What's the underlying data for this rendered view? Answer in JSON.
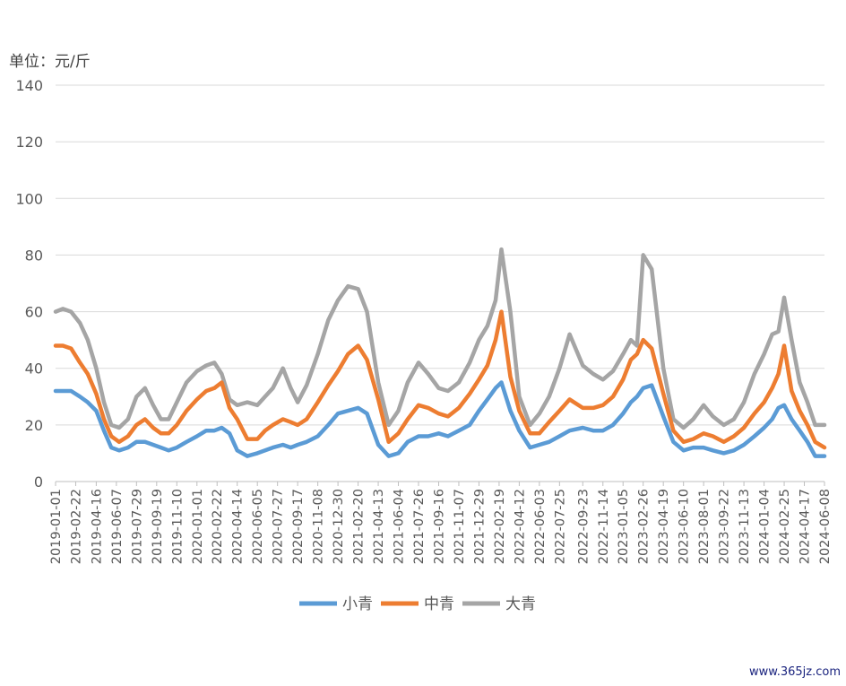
{
  "chart_data": {
    "type": "line",
    "unit_label": "单位：元/斤",
    "ylim": [
      0,
      140
    ],
    "y_ticks": [
      0,
      20,
      40,
      60,
      80,
      100,
      120,
      140
    ],
    "x_tick_labels": [
      "2019-01-01",
      "2019-02-22",
      "2019-04-16",
      "2019-06-07",
      "2019-07-29",
      "2019-09-19",
      "2019-11-10",
      "2020-01-01",
      "2020-02-22",
      "2020-04-14",
      "2020-06-05",
      "2020-07-27",
      "2020-09-17",
      "2020-11-08",
      "2020-12-30",
      "2021-02-20",
      "2021-04-13",
      "2021-06-04",
      "2021-07-26",
      "2021-09-16",
      "2021-11-07",
      "2021-12-29",
      "2022-02-19",
      "2022-04-12",
      "2022-06-03",
      "2022-07-25",
      "2022-09-23",
      "2022-11-14",
      "2023-01-05",
      "2023-02-26",
      "2023-04-19",
      "2023-06-10",
      "2023-08-01",
      "2023-09-22",
      "2023-11-13",
      "2024-01-04",
      "2024-02-25",
      "2024-04-17",
      "2024-06-08"
    ],
    "x": [
      "2019-01-01",
      "2019-01-20",
      "2019-02-10",
      "2019-03-05",
      "2019-03-25",
      "2019-04-16",
      "2019-05-06",
      "2019-05-25",
      "2019-06-14",
      "2019-07-07",
      "2019-07-29",
      "2019-08-20",
      "2019-09-10",
      "2019-09-30",
      "2019-10-20",
      "2019-11-10",
      "2019-12-05",
      "2020-01-01",
      "2020-01-25",
      "2020-02-15",
      "2020-03-05",
      "2020-03-25",
      "2020-04-14",
      "2020-05-10",
      "2020-06-05",
      "2020-06-25",
      "2020-07-15",
      "2020-08-10",
      "2020-08-30",
      "2020-09-17",
      "2020-10-10",
      "2020-11-08",
      "2020-12-05",
      "2020-12-30",
      "2021-01-25",
      "2021-02-20",
      "2021-03-15",
      "2021-04-13",
      "2021-05-10",
      "2021-06-04",
      "2021-06-28",
      "2021-07-26",
      "2021-08-20",
      "2021-09-16",
      "2021-10-10",
      "2021-11-07",
      "2021-12-05",
      "2021-12-29",
      "2022-01-20",
      "2022-02-10",
      "2022-02-25",
      "2022-03-20",
      "2022-04-12",
      "2022-05-10",
      "2022-06-03",
      "2022-06-28",
      "2022-07-25",
      "2022-08-20",
      "2022-09-23",
      "2022-10-20",
      "2022-11-14",
      "2022-12-10",
      "2023-01-05",
      "2023-01-25",
      "2023-02-10",
      "2023-02-26",
      "2023-03-20",
      "2023-04-19",
      "2023-05-15",
      "2023-06-10",
      "2023-07-05",
      "2023-08-01",
      "2023-08-25",
      "2023-09-22",
      "2023-10-18",
      "2023-11-13",
      "2023-12-10",
      "2024-01-04",
      "2024-01-25",
      "2024-02-10",
      "2024-02-25",
      "2024-03-15",
      "2024-04-05",
      "2024-04-25",
      "2024-05-15",
      "2024-06-08"
    ],
    "series": [
      {
        "name": "小青",
        "color": "#5b9bd5",
        "values": [
          32,
          32,
          32,
          30,
          28,
          25,
          18,
          12,
          11,
          12,
          14,
          14,
          13,
          12,
          11,
          12,
          14,
          16,
          18,
          18,
          19,
          17,
          11,
          9,
          10,
          11,
          12,
          13,
          12,
          13,
          14,
          16,
          20,
          24,
          25,
          26,
          24,
          13,
          9,
          10,
          14,
          16,
          16,
          17,
          16,
          18,
          20,
          25,
          29,
          33,
          35,
          25,
          18,
          12,
          13,
          14,
          16,
          18,
          19,
          18,
          18,
          20,
          24,
          28,
          30,
          33,
          34,
          23,
          14,
          11,
          12,
          12,
          11,
          10,
          11,
          13,
          16,
          19,
          22,
          26,
          27,
          22,
          18,
          14,
          9,
          9
        ]
      },
      {
        "name": "中青",
        "color": "#ed7d31",
        "values": [
          48,
          48,
          47,
          42,
          38,
          31,
          22,
          16,
          14,
          16,
          20,
          22,
          19,
          17,
          17,
          20,
          25,
          29,
          32,
          33,
          35,
          26,
          22,
          15,
          15,
          18,
          20,
          22,
          21,
          20,
          22,
          28,
          34,
          39,
          45,
          48,
          43,
          29,
          14,
          17,
          22,
          27,
          26,
          24,
          23,
          26,
          31,
          36,
          41,
          50,
          60,
          37,
          25,
          17,
          17,
          21,
          25,
          29,
          26,
          26,
          27,
          30,
          36,
          43,
          45,
          50,
          47,
          31,
          18,
          14,
          15,
          17,
          16,
          14,
          16,
          19,
          24,
          28,
          33,
          38,
          48,
          32,
          25,
          20,
          14,
          12
        ]
      },
      {
        "name": "大青",
        "color": "#a5a5a5",
        "values": [
          60,
          61,
          60,
          56,
          50,
          40,
          28,
          20,
          19,
          22,
          30,
          33,
          27,
          22,
          22,
          28,
          35,
          39,
          41,
          42,
          38,
          29,
          27,
          28,
          27,
          30,
          33,
          40,
          33,
          28,
          34,
          45,
          57,
          64,
          69,
          68,
          60,
          35,
          20,
          25,
          35,
          42,
          38,
          33,
          32,
          35,
          42,
          50,
          55,
          64,
          82,
          60,
          30,
          20,
          24,
          30,
          40,
          52,
          41,
          38,
          36,
          39,
          45,
          50,
          48,
          80,
          75,
          40,
          22,
          19,
          22,
          27,
          23,
          20,
          22,
          28,
          38,
          45,
          52,
          53,
          65,
          50,
          35,
          28,
          20,
          20
        ]
      }
    ]
  },
  "watermark": "www.365jz.com"
}
